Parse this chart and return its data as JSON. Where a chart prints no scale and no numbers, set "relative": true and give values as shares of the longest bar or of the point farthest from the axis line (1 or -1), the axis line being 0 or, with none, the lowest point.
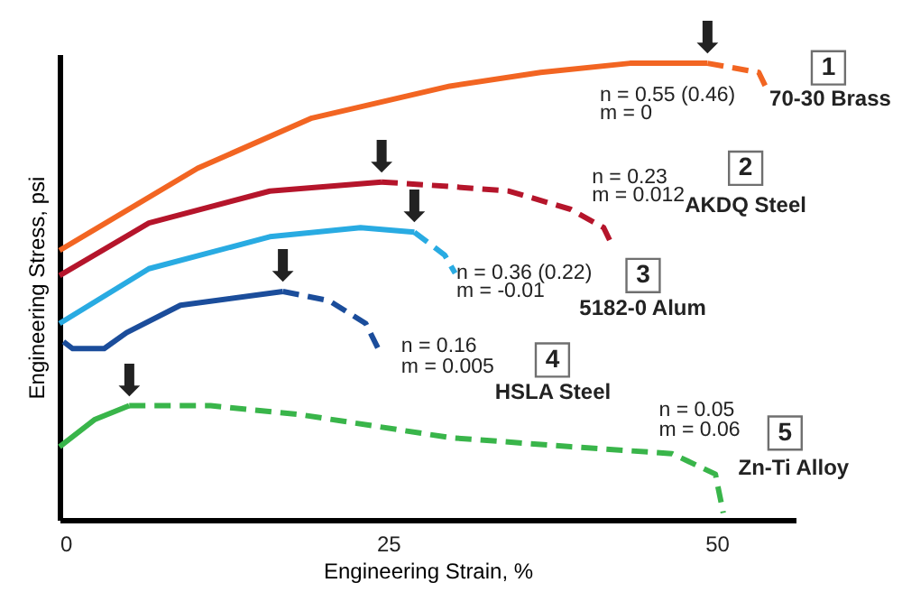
{
  "chart_data": {
    "type": "line",
    "relative": true,
    "xlabel": "Engineering Strain, %",
    "ylabel": "Engineering Stress, psi",
    "xlim": [
      0,
      56
    ],
    "xticks": [
      0,
      25,
      50
    ],
    "grid": false,
    "legend": false,
    "tick_labels": "x",
    "marker": "none",
    "series": [
      {
        "color": "#f26522",
        "line_style": "solid",
        "x": [
          0,
          10.5,
          19.2,
          29.7,
          36.6,
          43.4,
          49.3
        ],
        "values": [
          0.59,
          0.77,
          0.88,
          0.95,
          0.98,
          1.0,
          1.0
        ]
      },
      {
        "name": "70-30 Brass",
        "color": "#f26522",
        "line_style": "dashed",
        "x": [
          49.3,
          53.2,
          53.7
        ],
        "values": [
          1.0,
          0.98,
          0.95
        ]
      },
      {
        "color": "#b5152b",
        "line_style": "solid",
        "x": [
          0,
          6.8,
          16,
          24.5
        ],
        "values": [
          0.535,
          0.65,
          0.72,
          0.74
        ]
      },
      {
        "name": "AKDQ Steel",
        "color": "#b5152b",
        "line_style": "dashed",
        "x": [
          24.5,
          29.7,
          34.2,
          38.9,
          41.4,
          41.9
        ],
        "values": [
          0.74,
          0.73,
          0.72,
          0.68,
          0.64,
          0.61
        ]
      },
      {
        "color": "#29abe2",
        "line_style": "solid",
        "x": [
          0,
          6.8,
          16,
          22.9,
          27
        ],
        "values": [
          0.43,
          0.55,
          0.62,
          0.64,
          0.63
        ]
      },
      {
        "name": "5182-0 Alum",
        "color": "#29abe2",
        "line_style": "dashed",
        "x": [
          27,
          29.3,
          30.1
        ],
        "values": [
          0.63,
          0.58,
          0.54
        ]
      },
      {
        "color": "#1b4d9b",
        "line_style": "solid",
        "x": [
          0.3,
          1,
          3.4,
          5.1,
          9.2,
          17
        ],
        "values": [
          0.39,
          0.375,
          0.375,
          0.41,
          0.47,
          0.5
        ]
      },
      {
        "name": "HSLA Steel",
        "color": "#1b4d9b",
        "line_style": "dashed",
        "x": [
          17,
          20.5,
          23.3,
          24.5
        ],
        "values": [
          0.5,
          0.48,
          0.43,
          0.36
        ]
      },
      {
        "color": "#39b54a",
        "line_style": "solid",
        "x": [
          0,
          2.7,
          5.3
        ],
        "values": [
          0.16,
          0.22,
          0.25
        ]
      },
      {
        "name": "Zn-Ti Alloy",
        "color": "#39b54a",
        "line_style": "dashed",
        "x": [
          5.3,
          11.5,
          18.4,
          29.7,
          38.9,
          46.6,
          49.9,
          50.5
        ],
        "values": [
          0.25,
          0.25,
          0.23,
          0.18,
          0.16,
          0.145,
          0.1,
          0.015
        ]
      }
    ],
    "annotations": [
      "1",
      "n = 0.55 (0.46)",
      "m = 0",
      "2",
      "n = 0.23",
      "m = 0.012",
      "3",
      "n = 0.36 (0.22)",
      "m = -0.01",
      "4",
      "n = 0.16",
      "m = 0.005",
      "5",
      "n = 0.05",
      "m = 0.06",
      {
        "text": "⬇",
        "x": 49.3,
        "y": 1.0
      },
      {
        "text": "⬇",
        "x": 24.5,
        "y": 0.74
      },
      {
        "text": "⬇",
        "x": 27,
        "y": 0.63
      },
      {
        "text": "⬇",
        "x": 17,
        "y": 0.5
      },
      {
        "text": "⬇",
        "x": 5.3,
        "y": 0.25
      }
    ]
  }
}
